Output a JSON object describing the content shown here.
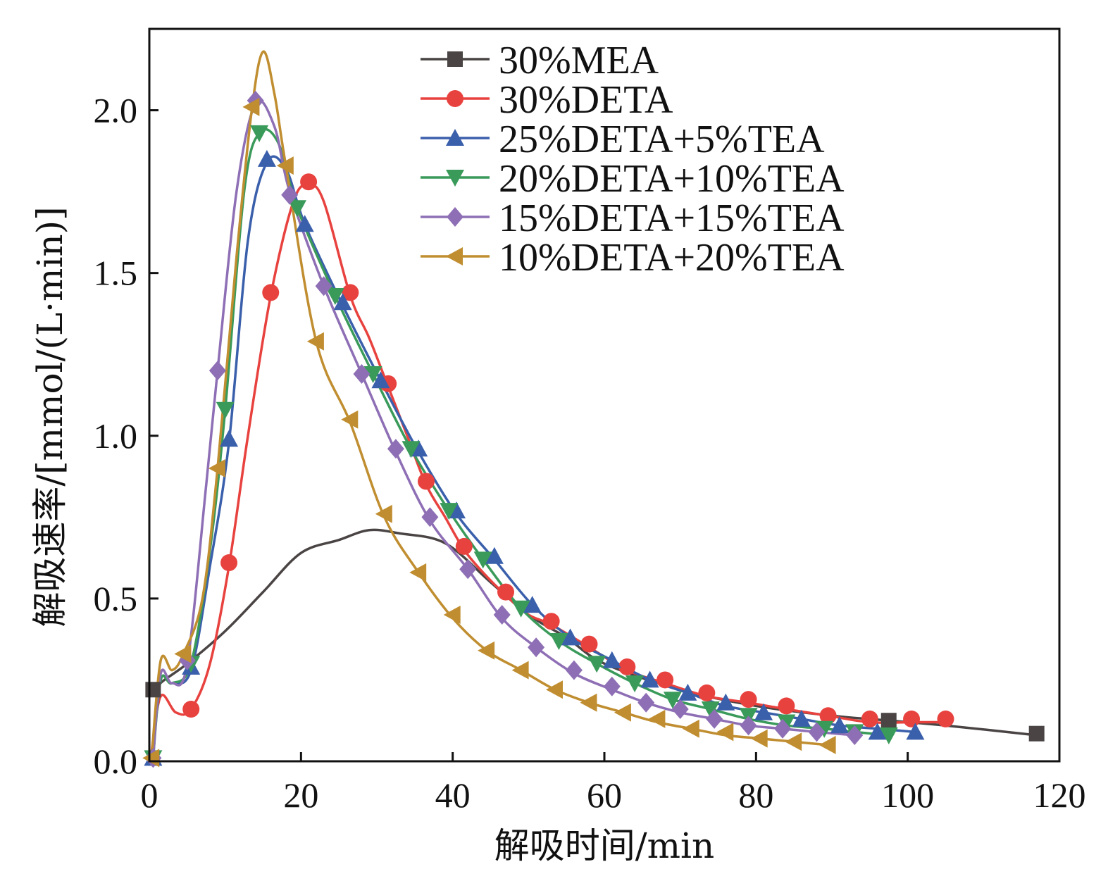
{
  "chart_data": {
    "type": "line",
    "title": "",
    "xlabel": "解吸时间/min",
    "ylabel": "解吸速率/[mmol/(L·min)]",
    "xlim": [
      0,
      120
    ],
    "ylim": [
      0,
      2.25
    ],
    "xticks": [
      0,
      20,
      40,
      60,
      80,
      100,
      120
    ],
    "xtick_labels": [
      "0",
      "20",
      "40",
      "60",
      "80",
      "100",
      "120"
    ],
    "yticks": [
      0,
      0.5,
      1.0,
      1.5,
      2.0
    ],
    "ytick_labels": [
      "0.0",
      "0.5",
      "1.0",
      "1.5",
      "2.0"
    ],
    "grid": false,
    "legend_position": "top-center",
    "series": [
      {
        "name": "30%MEA",
        "color": "#4a4444",
        "marker": "square",
        "x": [
          0.5,
          2,
          5,
          10,
          15,
          20,
          25,
          29,
          33,
          39,
          45,
          50,
          55,
          60,
          70,
          80,
          90,
          97.5,
          105,
          117
        ],
        "y": [
          0.22,
          0.25,
          0.3,
          0.4,
          0.52,
          0.64,
          0.68,
          0.71,
          0.7,
          0.67,
          0.55,
          0.45,
          0.38,
          0.3,
          0.22,
          0.17,
          0.14,
          0.125,
          0.11,
          0.08
        ],
        "marker_x": [
          0.5,
          97.5,
          117
        ],
        "marker_y": [
          0.22,
          0.125,
          0.085
        ]
      },
      {
        "name": "30%DETA",
        "color": "#e8423f",
        "marker": "circle",
        "x": [
          0.3,
          1.5,
          3.5,
          5.5,
          8,
          10.5,
          13,
          16,
          19,
          21,
          23,
          26.5,
          29,
          31.5,
          34,
          36.5,
          39,
          41.5,
          44,
          47,
          50,
          53,
          58,
          63,
          68,
          73.5,
          79,
          84,
          89.5,
          95,
          100.5,
          105
        ],
        "y": [
          0.03,
          0.2,
          0.15,
          0.16,
          0.3,
          0.6,
          1.0,
          1.43,
          1.72,
          1.77,
          1.72,
          1.43,
          1.3,
          1.15,
          1.0,
          0.85,
          0.75,
          0.65,
          0.58,
          0.51,
          0.45,
          0.42,
          0.35,
          0.28,
          0.24,
          0.2,
          0.18,
          0.16,
          0.14,
          0.12,
          0.12,
          0.12
        ],
        "marker_x": [
          5.5,
          10.5,
          16,
          21,
          26.5,
          31.5,
          36.5,
          41.5,
          47,
          53,
          58,
          63,
          68,
          73.5,
          79,
          84,
          89.5,
          95,
          100.5,
          105
        ],
        "marker_y": [
          0.16,
          0.61,
          1.44,
          1.78,
          1.44,
          1.16,
          0.86,
          0.66,
          0.52,
          0.43,
          0.36,
          0.29,
          0.25,
          0.21,
          0.19,
          0.17,
          0.14,
          0.13,
          0.13,
          0.13
        ]
      },
      {
        "name": "25%DETA+5%TEA",
        "color": "#3a5fab",
        "marker": "triangle-up",
        "x": [
          0.5,
          1.5,
          3,
          5.5,
          8,
          10.5,
          13,
          15.5,
          18,
          20.5,
          25.5,
          30.5,
          35.5,
          40.5,
          45.5,
          50.5,
          55.5,
          61,
          66,
          71,
          76,
          81,
          86,
          91,
          96,
          101
        ],
        "y": [
          0.02,
          0.25,
          0.24,
          0.28,
          0.6,
          0.98,
          1.6,
          1.84,
          1.82,
          1.65,
          1.4,
          1.17,
          0.95,
          0.76,
          0.62,
          0.48,
          0.38,
          0.31,
          0.25,
          0.21,
          0.17,
          0.15,
          0.13,
          0.11,
          0.1,
          0.09
        ],
        "marker_x": [
          0.5,
          5.5,
          10.5,
          15.5,
          20.5,
          25.5,
          30.5,
          35.5,
          40.5,
          45.5,
          50.5,
          55.5,
          61,
          66,
          71,
          76,
          81,
          86,
          91,
          96,
          101
        ],
        "marker_y": [
          0.01,
          0.29,
          0.99,
          1.85,
          1.65,
          1.41,
          1.17,
          0.96,
          0.77,
          0.63,
          0.48,
          0.38,
          0.31,
          0.25,
          0.21,
          0.18,
          0.15,
          0.13,
          0.11,
          0.09,
          0.09
        ]
      },
      {
        "name": "20%DETA+10%TEA",
        "color": "#3a9a5a",
        "marker": "triangle-down",
        "x": [
          0.5,
          1.5,
          3,
          5.5,
          8,
          10,
          12.5,
          14.5,
          17,
          19.5,
          24.5,
          29.5,
          34.5,
          39.5,
          44,
          49,
          54,
          59,
          64,
          69,
          74,
          79,
          84,
          89,
          93,
          97.5
        ],
        "y": [
          0.01,
          0.25,
          0.24,
          0.3,
          0.65,
          1.08,
          1.75,
          1.93,
          1.9,
          1.7,
          1.43,
          1.19,
          0.96,
          0.77,
          0.62,
          0.47,
          0.37,
          0.3,
          0.24,
          0.19,
          0.16,
          0.13,
          0.11,
          0.1,
          0.09,
          0.08
        ],
        "marker_x": [
          0.5,
          5.5,
          10,
          14.5,
          19.5,
          24.5,
          29.5,
          34.5,
          39.5,
          44,
          49,
          54,
          59,
          64,
          69,
          74,
          79,
          84,
          89,
          93,
          97.5
        ],
        "marker_y": [
          0.01,
          0.3,
          1.08,
          1.93,
          1.7,
          1.43,
          1.19,
          0.96,
          0.77,
          0.62,
          0.47,
          0.37,
          0.3,
          0.24,
          0.19,
          0.16,
          0.14,
          0.12,
          0.1,
          0.09,
          0.08
        ]
      },
      {
        "name": "15%DETA+15%TEA",
        "color": "#8e6fb5",
        "marker": "diamond",
        "x": [
          0.5,
          1.5,
          3,
          5,
          7.5,
          9,
          11.5,
          14,
          16.5,
          18.5,
          23,
          28,
          32.5,
          37,
          42,
          46.5,
          51,
          56,
          61,
          65.5,
          70,
          74.5,
          79,
          83.5,
          88,
          93
        ],
        "y": [
          0.01,
          0.27,
          0.24,
          0.3,
          0.85,
          1.2,
          1.75,
          2.02,
          1.95,
          1.75,
          1.46,
          1.19,
          0.95,
          0.74,
          0.59,
          0.44,
          0.35,
          0.27,
          0.22,
          0.18,
          0.15,
          0.13,
          0.11,
          0.1,
          0.09,
          0.08
        ],
        "marker_x": [
          0.5,
          5,
          9,
          14,
          18.5,
          23,
          28,
          32.5,
          37,
          42,
          46.5,
          51,
          56,
          61,
          65.5,
          70,
          74.5,
          79,
          83.5,
          88,
          93
        ],
        "marker_y": [
          0.01,
          0.31,
          1.2,
          2.03,
          1.74,
          1.46,
          1.19,
          0.96,
          0.75,
          0.59,
          0.45,
          0.35,
          0.28,
          0.23,
          0.18,
          0.16,
          0.13,
          0.11,
          0.1,
          0.09,
          0.08
        ]
      },
      {
        "name": "10%DETA+20%TEA",
        "color": "#c08e30",
        "marker": "triangle-left",
        "x": [
          0.3,
          1.5,
          3,
          4.5,
          7,
          9,
          11.5,
          13.5,
          15,
          16.5,
          18,
          22,
          26.5,
          31,
          35.5,
          40,
          44.5,
          49,
          53.5,
          58,
          62.5,
          67,
          71.5,
          76,
          80.5,
          85,
          89.5
        ],
        "y": [
          0.01,
          0.31,
          0.28,
          0.33,
          0.5,
          0.9,
          1.55,
          2.0,
          2.18,
          2.05,
          1.83,
          1.29,
          1.04,
          0.75,
          0.58,
          0.44,
          0.34,
          0.28,
          0.22,
          0.18,
          0.15,
          0.12,
          0.1,
          0.08,
          0.07,
          0.06,
          0.05
        ],
        "marker_x": [
          0.3,
          4.5,
          9,
          13.5,
          18,
          22,
          26.5,
          31,
          35.5,
          40,
          44.5,
          49,
          53.5,
          58,
          62.5,
          67,
          71.5,
          76,
          80.5,
          85,
          89.5
        ],
        "marker_y": [
          0.01,
          0.33,
          0.9,
          2.01,
          1.83,
          1.29,
          1.05,
          0.76,
          0.58,
          0.45,
          0.34,
          0.28,
          0.22,
          0.18,
          0.15,
          0.13,
          0.1,
          0.09,
          0.07,
          0.06,
          0.05
        ]
      }
    ]
  }
}
